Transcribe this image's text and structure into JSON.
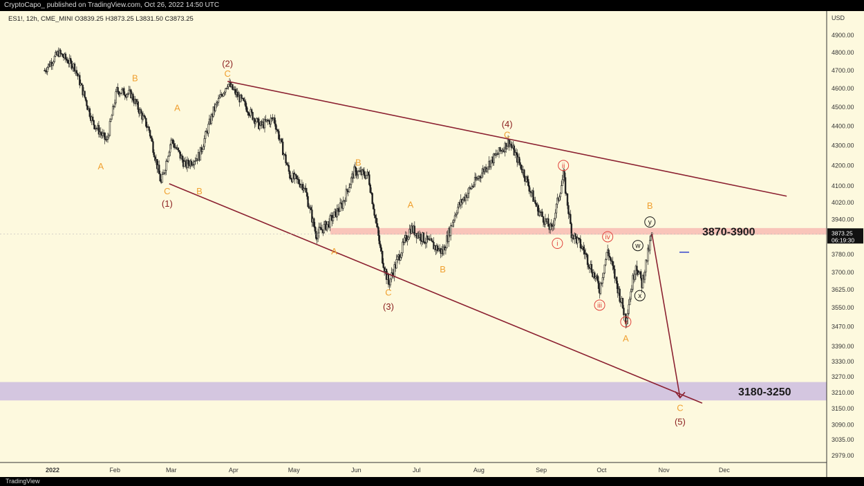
{
  "header": {
    "published": "CryptoCapo_ published on TradingView.com, Oct 26, 2022 14:50 UTC",
    "symbol_line": "ES1!, 12h, CME_MINI  O3839.25  H3873.25  L3831.50  C3873.25"
  },
  "footer": {
    "brand": "TradingView"
  },
  "price_tag": {
    "price": "3873.25",
    "countdown": "06:19:30"
  },
  "colors": {
    "background": "#fdf9de",
    "wave_orange": "#f0a030",
    "wave_dark": "#8b2020",
    "channel": "#8b2030",
    "resistance_zone": "#f7b3ad",
    "support_zone": "#cdbde0",
    "minor_red": "#e0403a"
  },
  "chart_data": {
    "type": "candlestick",
    "currency_label": "USD",
    "y_ticks": [
      4900.0,
      4800.0,
      4700.0,
      4600.0,
      4500.0,
      4400.0,
      4300.0,
      4200.0,
      4100.0,
      4020.0,
      3940.0,
      3780.0,
      3700.0,
      3625.0,
      3550.0,
      3470.0,
      3390.0,
      3330.0,
      3270.0,
      3210.0,
      3150.0,
      3090.0,
      3035.0,
      2979.0
    ],
    "x_ticks": [
      "2022",
      "Feb",
      "Mar",
      "Apr",
      "May",
      "Jun",
      "Jul",
      "Aug",
      "Sep",
      "Oct",
      "Nov",
      "Dec"
    ],
    "price_path": [
      [
        "2021-12-28",
        4700
      ],
      [
        "2022-01-04",
        4800
      ],
      [
        "2022-01-12",
        4720
      ],
      [
        "2022-01-21",
        4420
      ],
      [
        "2022-01-28",
        4320
      ],
      [
        "2022-02-02",
        4590
      ],
      [
        "2022-02-09",
        4570
      ],
      [
        "2022-02-18",
        4380
      ],
      [
        "2022-02-24",
        4110
      ],
      [
        "2022-03-01",
        4330
      ],
      [
        "2022-03-08",
        4200
      ],
      [
        "2022-03-15",
        4250
      ],
      [
        "2022-03-22",
        4480
      ],
      [
        "2022-03-29",
        4630
      ],
      [
        "2022-04-06",
        4520
      ],
      [
        "2022-04-14",
        4400
      ],
      [
        "2022-04-21",
        4440
      ],
      [
        "2022-04-29",
        4150
      ],
      [
        "2022-05-06",
        4100
      ],
      [
        "2022-05-12",
        3870
      ],
      [
        "2022-05-18",
        3920
      ],
      [
        "2022-05-25",
        4010
      ],
      [
        "2022-05-31",
        4170
      ],
      [
        "2022-06-07",
        4150
      ],
      [
        "2022-06-13",
        3800
      ],
      [
        "2022-06-17",
        3650
      ],
      [
        "2022-06-23",
        3790
      ],
      [
        "2022-06-28",
        3900
      ],
      [
        "2022-07-06",
        3840
      ],
      [
        "2022-07-14",
        3790
      ],
      [
        "2022-07-21",
        3990
      ],
      [
        "2022-07-28",
        4090
      ],
      [
        "2022-08-05",
        4200
      ],
      [
        "2022-08-16",
        4320
      ],
      [
        "2022-08-23",
        4170
      ],
      [
        "2022-08-30",
        3990
      ],
      [
        "2022-09-06",
        3890
      ],
      [
        "2022-09-12",
        4150
      ],
      [
        "2022-09-16",
        3880
      ],
      [
        "2022-09-22",
        3800
      ],
      [
        "2022-09-30",
        3630
      ],
      [
        "2022-10-04",
        3800
      ],
      [
        "2022-10-10",
        3600
      ],
      [
        "2022-10-13",
        3500
      ],
      [
        "2022-10-18",
        3740
      ],
      [
        "2022-10-21",
        3650
      ],
      [
        "2022-10-26",
        3873.25
      ]
    ],
    "zones": [
      {
        "label": "3870-3900",
        "from": 3870,
        "to": 3900
      },
      {
        "label": "3180-3250",
        "from": 3180,
        "to": 3250
      }
    ],
    "channel_lines": [
      {
        "from": [
          "2022-03-29",
          4640
        ],
        "to": [
          "2023-01-01",
          4050
        ]
      },
      {
        "from": [
          "2022-02-28",
          4110
        ],
        "to": [
          "2022-11-20",
          3170
        ]
      }
    ],
    "projection": {
      "from": [
        "2022-10-26",
        3873
      ],
      "to": [
        "2022-11-09",
        3190
      ]
    },
    "wave_labels": [
      {
        "text": "A",
        "date": "2022-01-25",
        "price": 4180,
        "color": "orange"
      },
      {
        "text": "B",
        "date": "2022-02-11",
        "price": 4640,
        "color": "orange"
      },
      {
        "text": "A",
        "date": "2022-03-04",
        "price": 4480,
        "color": "orange"
      },
      {
        "text": "C",
        "date": "2022-02-27",
        "price": 4060,
        "color": "orange"
      },
      {
        "text": "(1)",
        "date": "2022-02-27",
        "price": 4000,
        "color": "dark"
      },
      {
        "text": "B",
        "date": "2022-03-15",
        "price": 4060,
        "color": "orange"
      },
      {
        "text": "(2)",
        "date": "2022-03-29",
        "price": 4720,
        "color": "dark"
      },
      {
        "text": "C",
        "date": "2022-03-29",
        "price": 4665,
        "color": "orange"
      },
      {
        "text": "B",
        "date": "2022-06-02",
        "price": 4200,
        "color": "orange"
      },
      {
        "text": "A",
        "date": "2022-05-21",
        "price": 3780,
        "color": "orange"
      },
      {
        "text": "A",
        "date": "2022-06-28",
        "price": 3995,
        "color": "orange"
      },
      {
        "text": "C",
        "date": "2022-06-17",
        "price": 3600,
        "color": "orange"
      },
      {
        "text": "(3)",
        "date": "2022-06-17",
        "price": 3540,
        "color": "dark"
      },
      {
        "text": "B",
        "date": "2022-07-14",
        "price": 3700,
        "color": "orange"
      },
      {
        "text": "(4)",
        "date": "2022-08-15",
        "price": 4395,
        "color": "dark"
      },
      {
        "text": "C",
        "date": "2022-08-15",
        "price": 4340,
        "color": "orange"
      },
      {
        "text": "A",
        "date": "2022-10-13",
        "price": 3410,
        "color": "orange"
      },
      {
        "text": "B",
        "date": "2022-10-25",
        "price": 3990,
        "color": "orange"
      },
      {
        "text": "C",
        "date": "2022-11-09",
        "price": 3140,
        "color": "orange"
      },
      {
        "text": "(5)",
        "date": "2022-11-09",
        "price": 3090,
        "color": "dark"
      }
    ],
    "minor_labels": [
      {
        "text": "i",
        "date": "2022-09-09",
        "price": 3830,
        "style": "red"
      },
      {
        "text": "ii",
        "date": "2022-09-12",
        "price": 4200,
        "style": "red"
      },
      {
        "text": "iii",
        "date": "2022-09-30",
        "price": 3560,
        "style": "red"
      },
      {
        "text": "iv",
        "date": "2022-10-04",
        "price": 3860,
        "style": "red"
      },
      {
        "text": "v",
        "date": "2022-10-13",
        "price": 3490,
        "style": "red"
      },
      {
        "text": "w",
        "date": "2022-10-19",
        "price": 3820,
        "style": "black"
      },
      {
        "text": "x",
        "date": "2022-10-20",
        "price": 3600,
        "style": "black"
      },
      {
        "text": "y",
        "date": "2022-10-25",
        "price": 3928,
        "style": "black"
      }
    ]
  }
}
